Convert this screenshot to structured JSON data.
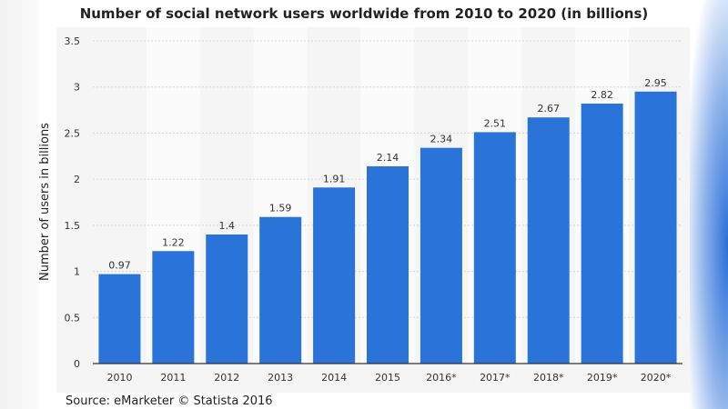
{
  "chart_data": {
    "type": "bar",
    "title": "Number of social network users worldwide from 2010 to 2020 (in billions)",
    "xlabel": "",
    "ylabel": "Number of users in billions",
    "categories": [
      "2010",
      "2011",
      "2012",
      "2013",
      "2014",
      "2015",
      "2016*",
      "2017*",
      "2018*",
      "2019*",
      "2020*"
    ],
    "values": [
      0.97,
      1.22,
      1.4,
      1.59,
      1.91,
      2.14,
      2.34,
      2.51,
      2.67,
      2.82,
      2.95
    ],
    "data_labels": [
      "0.97",
      "1.22",
      "1.4",
      "1.59",
      "1.91",
      "2.14",
      "2.34",
      "2.51",
      "2.67",
      "2.82",
      "2.95"
    ],
    "ylim": [
      0,
      3.5
    ],
    "yticks": [
      "0",
      "0.5",
      "1",
      "1.5",
      "2",
      "2.5",
      "3",
      "3.5"
    ],
    "grid": true,
    "bar_color": "#2a73d9",
    "source": "Source: eMarketer © Statista 2016"
  }
}
